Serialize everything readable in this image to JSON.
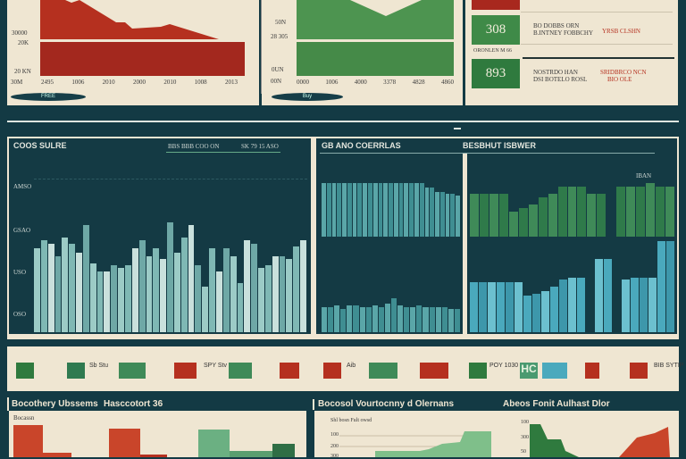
{
  "top_left": {
    "y_labels": [
      "30000",
      "20K",
      "20 KN",
      "30M"
    ],
    "x_labels": [
      "2495",
      "1006",
      "2010",
      "2000",
      "2010",
      "1008",
      "2013"
    ],
    "button": "FREE"
  },
  "top_mid": {
    "y_labels": [
      "50N",
      "28 305",
      "0UN",
      "00N"
    ],
    "x_labels": [
      "0000",
      "1006",
      "4000",
      "3378",
      "4828",
      "4860"
    ],
    "button": "Buy"
  },
  "kpis": [
    {
      "value": "308",
      "line1": "BO DOBBS ORN",
      "line2": "B.INTNEY FOBBCHY",
      "delta": "YRSB CLSHN"
    },
    {
      "value": "893",
      "line1": "NOSTRDO HAN",
      "line2": "DSI BOTELO ROSL",
      "delta": "SRIDBRCO NCN",
      "delta2": "BIO OLE"
    }
  ],
  "kpi_caption": "ORONLEN M 66",
  "panel_a": {
    "title": "COOS SULRE",
    "legend1": "BBS BBB COO ON",
    "legend2": "SK 79 15 ASO",
    "y_labels": [
      "AMSO",
      "GSAO",
      "USO",
      "OSO"
    ]
  },
  "panel_b": {
    "title": "GB ANO COERRLAS",
    "title2": "BESBHUT ISBWER",
    "legend": "IBAN"
  },
  "icon_row": [
    {
      "t": "Sb Stu"
    },
    {
      "t": "SPY Stv"
    },
    {
      "t": "Aib"
    },
    {
      "t": "POY 1030"
    },
    {
      "t": "HC"
    },
    {
      "t": "BIB SYTIP"
    }
  ],
  "bottom": {
    "t1": "Bocothery Ubssems",
    "t2": "Hasccotort 36",
    "sub1": "Bocassn",
    "t3": "Bocosol Vourtocnny d Olernans",
    "sub2": "Shl bosn Fult owsd",
    "y2": [
      "100",
      "200",
      "300"
    ],
    "t4": "Abeos Fonit Aulhast Dlor",
    "y3": [
      "100",
      "300",
      "50"
    ]
  },
  "colors": {
    "red": "#b5301f",
    "green": "#3f8a48",
    "teal": "#8ec3bf",
    "cyan": "#4aa9bd"
  },
  "chart_series": {
    "a": [
      55,
      60,
      58,
      50,
      62,
      58,
      52,
      70,
      45,
      40,
      40,
      44,
      42,
      44,
      55,
      60,
      50,
      55,
      48,
      72,
      52,
      62,
      70,
      44,
      30,
      55,
      40,
      55,
      50,
      32,
      60,
      58,
      42,
      44,
      50,
      50,
      48,
      56,
      60
    ],
    "b1": [
      60,
      60,
      60,
      60,
      60,
      60,
      60,
      60,
      60,
      60,
      60,
      60,
      60,
      60,
      60,
      60,
      60,
      60,
      60,
      60,
      55,
      55,
      50,
      50,
      48,
      48,
      46
    ],
    "b2": [
      28,
      28,
      30,
      26,
      30,
      30,
      28,
      28,
      30,
      28,
      32,
      38,
      30,
      28,
      28,
      30,
      28,
      28,
      28,
      28,
      26,
      26
    ],
    "c_green": [
      60,
      60,
      60,
      60,
      35,
      40,
      45,
      55,
      60,
      70,
      70,
      70,
      60,
      60,
      0,
      70,
      70,
      70,
      75,
      70,
      70
    ],
    "c_blue": [
      55,
      55,
      55,
      55,
      55,
      55,
      40,
      42,
      45,
      50,
      58,
      60,
      60,
      0,
      80,
      80,
      0,
      58,
      60,
      60,
      60,
      100,
      100
    ]
  }
}
